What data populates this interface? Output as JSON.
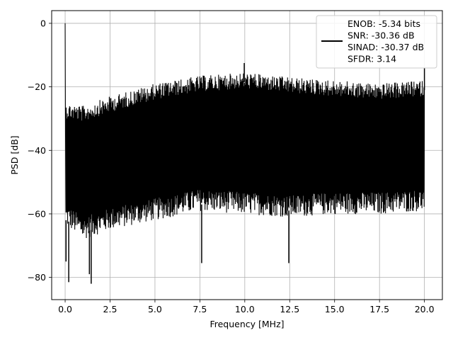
{
  "chart_data": {
    "type": "line",
    "xlabel": "Frequency [MHz]",
    "ylabel": "PSD [dB]",
    "xlim": [
      -0.75,
      21.0
    ],
    "ylim": [
      -87,
      4
    ],
    "x_ticks": [
      0.0,
      2.5,
      5.0,
      7.5,
      10.0,
      12.5,
      15.0,
      17.5,
      20.0
    ],
    "x_tick_labels": [
      "0.0",
      "2.5",
      "5.0",
      "7.5",
      "10.0",
      "12.5",
      "15.0",
      "17.5",
      "20.0"
    ],
    "y_ticks": [
      0,
      -20,
      -40,
      -60,
      -80
    ],
    "y_tick_labels": [
      "0",
      "−20",
      "−40",
      "−60",
      "−80"
    ],
    "grid": true,
    "legend_position": "top-right",
    "series": [
      {
        "name": "ENOB: -5.34 bits\nSNR: -30.36 dB\nSINAD: -30.37 dB\nSFDR: 3.14",
        "color": "#000000",
        "x_range": [
          0.0,
          20.0
        ],
        "dc_peak": 0,
        "upper_envelope": [
          {
            "x": 0.1,
            "y": -25
          },
          {
            "x": 1.0,
            "y": -26
          },
          {
            "x": 2.5,
            "y": -23
          },
          {
            "x": 5.0,
            "y": -19
          },
          {
            "x": 7.5,
            "y": -16.5
          },
          {
            "x": 10.0,
            "y": -15.5
          },
          {
            "x": 12.5,
            "y": -17
          },
          {
            "x": 15.0,
            "y": -18
          },
          {
            "x": 17.5,
            "y": -19
          },
          {
            "x": 20.0,
            "y": -18
          }
        ],
        "lower_envelope": [
          {
            "x": 0.1,
            "y": -62
          },
          {
            "x": 1.0,
            "y": -66
          },
          {
            "x": 2.5,
            "y": -63
          },
          {
            "x": 5.0,
            "y": -60
          },
          {
            "x": 7.5,
            "y": -57
          },
          {
            "x": 10.0,
            "y": -58
          },
          {
            "x": 12.5,
            "y": -59
          },
          {
            "x": 15.0,
            "y": -58
          },
          {
            "x": 17.5,
            "y": -58
          },
          {
            "x": 20.0,
            "y": -57
          }
        ],
        "spikes": [
          {
            "x": 9.97,
            "y": -12.5
          },
          {
            "x": 20.0,
            "y": -14
          },
          {
            "x": 0.2,
            "y": -81.5
          },
          {
            "x": 1.45,
            "y": -82
          },
          {
            "x": 1.35,
            "y": -79
          },
          {
            "x": 7.6,
            "y": -75.5
          },
          {
            "x": 12.45,
            "y": -75.5
          },
          {
            "x": 0.05,
            "y": -75
          }
        ]
      }
    ]
  }
}
